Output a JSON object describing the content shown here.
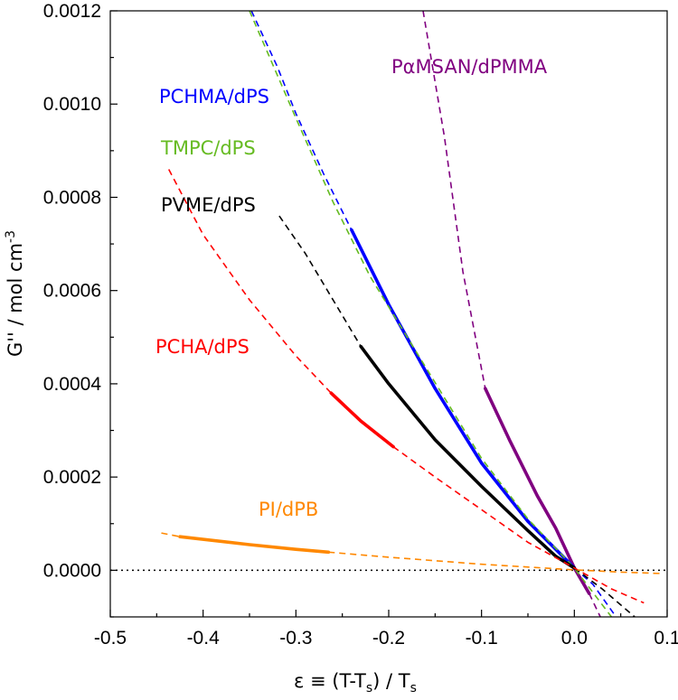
{
  "chart_data": {
    "type": "line",
    "xlabel": "ε ≡ (T-T",
    "xlabel_sub": "s",
    "xlabel_tail": ") / T",
    "xlabel_sub2": "s",
    "ylabel": "G'' / mol cm",
    "ylabel_sup": "-3",
    "xlim": [
      -0.5,
      0.1
    ],
    "ylim": [
      -0.0001,
      0.0012
    ],
    "x_ticks": [
      -0.5,
      -0.4,
      -0.3,
      -0.2,
      -0.1,
      0.0,
      0.1
    ],
    "x_tick_labels": [
      "-0.5",
      "-0.4",
      "-0.3",
      "-0.2",
      "-0.1",
      "0.0",
      "0.1"
    ],
    "y_ticks": [
      0.0,
      0.0002,
      0.0004,
      0.0006,
      0.0008,
      0.001,
      0.0012
    ],
    "y_tick_labels": [
      "0.0000",
      "0.0002",
      "0.0004",
      "0.0006",
      "0.0008",
      "0.0010",
      "0.0012"
    ],
    "zero_line": true,
    "series": [
      {
        "name": "PαMSAN/dPMMA",
        "color": "#800080",
        "dashed": [
          [
            -0.163,
            0.0012
          ],
          [
            -0.14,
            0.00093
          ],
          [
            -0.12,
            0.00064
          ],
          [
            -0.096,
            0.00039
          ]
        ],
        "solid": [
          [
            -0.096,
            0.00039
          ],
          [
            -0.07,
            0.00028
          ],
          [
            -0.04,
            0.00016
          ],
          [
            -0.02,
            9e-05
          ],
          [
            0.0,
            5e-06
          ],
          [
            0.016,
            -5e-05
          ]
        ],
        "dashed_tail": [
          [
            0.016,
            -5e-05
          ],
          [
            0.028,
            -0.0001
          ]
        ]
      },
      {
        "name": "PCHMA/dPS",
        "color": "#0000ff",
        "dashed": [
          [
            -0.348,
            0.0012
          ],
          [
            -0.32,
            0.00108
          ],
          [
            -0.3,
            0.00098
          ],
          [
            -0.27,
            0.00085
          ],
          [
            -0.24,
            0.00073
          ]
        ],
        "solid": [
          [
            -0.24,
            0.00073
          ],
          [
            -0.2,
            0.00057
          ],
          [
            -0.15,
            0.00039
          ],
          [
            -0.1,
            0.00023
          ],
          [
            -0.05,
            0.000105
          ],
          [
            -0.02,
            4.5e-05
          ],
          [
            0.0,
            5e-06
          ]
        ],
        "dashed_tail": [
          [
            0.0,
            5e-06
          ],
          [
            0.02,
            -3e-05
          ],
          [
            0.045,
            -0.0001
          ]
        ]
      },
      {
        "name": "TMPC/dPS",
        "color": "#66bb22",
        "dashed": [
          [
            -0.35,
            0.0012
          ],
          [
            -0.3,
            0.00097
          ],
          [
            -0.26,
            0.00079
          ],
          [
            -0.22,
            0.00063
          ],
          [
            -0.18,
            0.0005
          ],
          [
            -0.14,
            0.00037
          ],
          [
            -0.1,
            0.00024
          ],
          [
            -0.05,
            0.00011
          ],
          [
            0.0,
            5e-06
          ],
          [
            0.04,
            -0.0001
          ]
        ],
        "solid": [],
        "dashed_tail": []
      },
      {
        "name": "PVME/dPS",
        "color": "#000000",
        "dashed": [
          [
            -0.318,
            0.00076
          ],
          [
            -0.29,
            0.00068
          ],
          [
            -0.26,
            0.00058
          ],
          [
            -0.23,
            0.00048
          ]
        ],
        "solid": [
          [
            -0.23,
            0.00048
          ],
          [
            -0.2,
            0.0004
          ],
          [
            -0.15,
            0.00028
          ],
          [
            -0.1,
            0.00018
          ],
          [
            -0.05,
            8.5e-05
          ],
          [
            -0.02,
            3e-05
          ],
          [
            0.0,
            5e-06
          ]
        ],
        "dashed_tail": [
          [
            0.0,
            5e-06
          ],
          [
            0.03,
            -4e-05
          ],
          [
            0.065,
            -0.0001
          ]
        ]
      },
      {
        "name": "PCHA/dPS",
        "color": "#ff0000",
        "dashed": [
          [
            -0.437,
            0.00086
          ],
          [
            -0.4,
            0.00072
          ],
          [
            -0.35,
            0.00058
          ],
          [
            -0.3,
            0.00046
          ],
          [
            -0.262,
            0.00038
          ]
        ],
        "solid": [
          [
            -0.262,
            0.00038
          ],
          [
            -0.23,
            0.00032
          ],
          [
            -0.195,
            0.000265
          ]
        ],
        "dashed_tail": [
          [
            -0.195,
            0.000265
          ],
          [
            -0.15,
            0.0002
          ],
          [
            -0.1,
            0.00013
          ],
          [
            -0.05,
            6e-05
          ],
          [
            0.0,
            5e-06
          ],
          [
            0.04,
            -4e-05
          ],
          [
            0.075,
            -7e-05
          ]
        ]
      },
      {
        "name": "PI/dPB",
        "color": "#ff8800",
        "dashed": [
          [
            -0.445,
            8e-05
          ],
          [
            -0.425,
            7.2e-05
          ]
        ],
        "solid": [
          [
            -0.425,
            7.2e-05
          ],
          [
            -0.35,
            5.5e-05
          ],
          [
            -0.3,
            4.5e-05
          ],
          [
            -0.265,
            3.9e-05
          ]
        ],
        "dashed_tail": [
          [
            -0.265,
            3.9e-05
          ],
          [
            -0.2,
            2.8e-05
          ],
          [
            -0.1,
            1.3e-05
          ],
          [
            0.0,
            1e-06
          ],
          [
            0.05,
            -4e-06
          ],
          [
            0.095,
            -7e-06
          ]
        ]
      }
    ],
    "labels": [
      {
        "text": "PαMSAN/dPMMA",
        "color": "#800080"
      },
      {
        "text": "PCHMA/dPS",
        "color": "#0000ff"
      },
      {
        "text": "TMPC/dPS",
        "color": "#66bb22"
      },
      {
        "text": "PVME/dPS",
        "color": "#000000"
      },
      {
        "text": "PCHA/dPS",
        "color": "#ff0000"
      },
      {
        "text": "PI/dPB",
        "color": "#ff8800"
      }
    ]
  }
}
